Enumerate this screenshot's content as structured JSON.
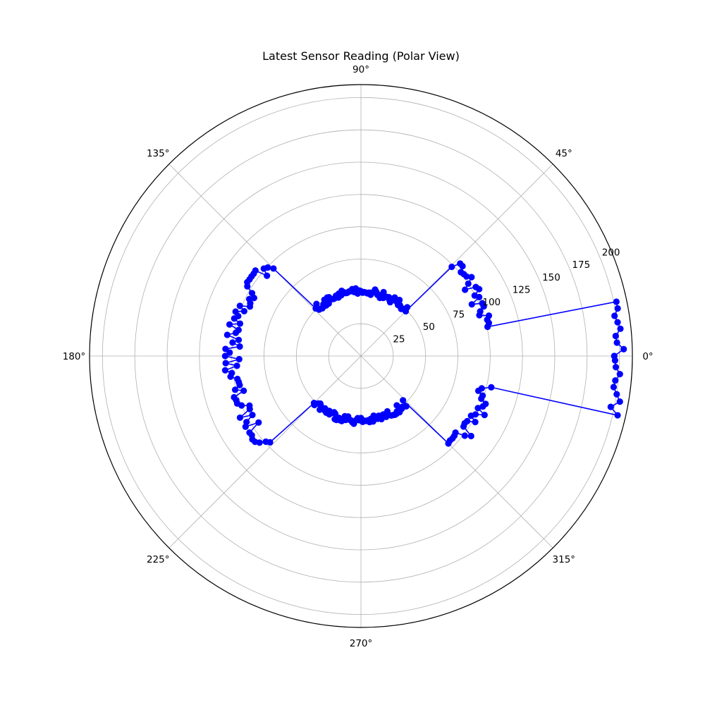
{
  "chart_data": {
    "type": "polar-line",
    "title": "Latest Sensor Reading (Polar View)",
    "angle_unit": "degrees",
    "angle_ticks": [
      "0°",
      "45°",
      "90°",
      "135°",
      "180°",
      "225°",
      "270°",
      "315°"
    ],
    "radial_ticks": [
      "25",
      "50",
      "75",
      "100",
      "125",
      "150",
      "175",
      "200"
    ],
    "rlim": [
      0,
      210
    ],
    "grid": true,
    "series": [
      {
        "color": "#0000ff",
        "marker": "circle",
        "segments": [
          {
            "theta": [
              0,
              13
            ],
            "r": [
              200,
              200
            ],
            "noise": 4
          },
          {
            "theta": [
              13,
              45
            ],
            "r": [
              100,
              100
            ],
            "noise": 6
          },
          {
            "theta": [
              45,
              135
            ],
            "r": [
              50,
              50
            ],
            "noise": 3
          },
          {
            "theta": [
              135,
              225
            ],
            "r": [
              100,
              100
            ],
            "noise": 6
          },
          {
            "theta": [
              225,
              315
            ],
            "r": [
              50,
              50
            ],
            "noise": 3
          },
          {
            "theta": [
              315,
              347
            ],
            "r": [
              100,
              100
            ],
            "noise": 6
          },
          {
            "theta": [
              347,
              360
            ],
            "r": [
              200,
              200
            ],
            "noise": 4
          }
        ]
      }
    ]
  }
}
